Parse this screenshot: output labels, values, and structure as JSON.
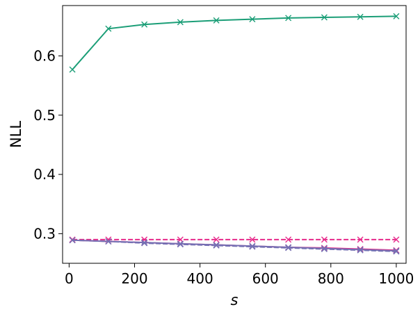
{
  "chart_data": {
    "type": "line",
    "title": "",
    "xlabel": "s",
    "ylabel": "NLL",
    "xlim": [
      -20,
      1030
    ],
    "ylim": [
      0.25,
      0.685
    ],
    "grid": false,
    "legend": "none",
    "x_ticks": [
      0,
      200,
      400,
      600,
      800,
      1000
    ],
    "y_ticks": [
      0.3,
      0.4,
      0.5,
      0.6
    ],
    "x_tick_labels": [
      "0",
      "200",
      "400",
      "600",
      "800",
      "1000"
    ],
    "y_tick_labels": [
      "0.3",
      "0.4",
      "0.5",
      "0.6"
    ],
    "x": [
      10,
      120,
      230,
      340,
      450,
      560,
      670,
      780,
      890,
      1000
    ],
    "series": [
      {
        "color": "#1b9e77",
        "dash": "solid",
        "marker": "x",
        "values": [
          0.577,
          0.646,
          0.653,
          0.657,
          0.66,
          0.662,
          0.664,
          0.665,
          0.666,
          0.667
        ]
      },
      {
        "color": "#e7298a",
        "dash": "dashed",
        "marker": "x",
        "values": [
          0.29,
          0.29,
          0.29,
          0.29,
          0.29,
          0.29,
          0.29,
          0.29,
          0.29,
          0.29
        ]
      },
      {
        "color": "#e7298a",
        "dash": "solid",
        "marker": "x",
        "values": [
          0.289,
          0.287,
          0.285,
          0.283,
          0.281,
          0.279,
          0.277,
          0.276,
          0.274,
          0.272
        ]
      },
      {
        "color": "#7570b3",
        "dash": "dashed",
        "marker": "x",
        "values": [
          0.289,
          0.287,
          0.284,
          0.282,
          0.28,
          0.278,
          0.276,
          0.274,
          0.272,
          0.27
        ]
      },
      {
        "color": "#7570b3",
        "dash": "solid",
        "marker": "x",
        "values": [
          0.289,
          0.287,
          0.285,
          0.283,
          0.281,
          0.279,
          0.277,
          0.275,
          0.273,
          0.271
        ]
      }
    ]
  }
}
